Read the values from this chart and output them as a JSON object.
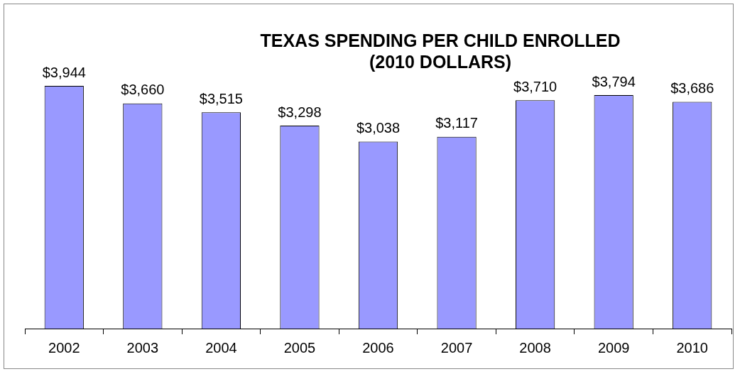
{
  "chart_data": {
    "type": "bar",
    "title": "TEXAS SPENDING PER CHILD ENROLLED\n(2010 DOLLARS)",
    "categories": [
      "2002",
      "2003",
      "2004",
      "2005",
      "2006",
      "2007",
      "2008",
      "2009",
      "2010"
    ],
    "values": [
      3944,
      3660,
      3515,
      3298,
      3038,
      3117,
      3710,
      3794,
      3686
    ],
    "value_labels": [
      "$3,944",
      "$3,660",
      "$3,515",
      "$3,298",
      "$3,038",
      "$3,117",
      "$3,710",
      "$3,794",
      "$3,686"
    ],
    "color": "#9999ff",
    "grid": false,
    "legend": false
  }
}
